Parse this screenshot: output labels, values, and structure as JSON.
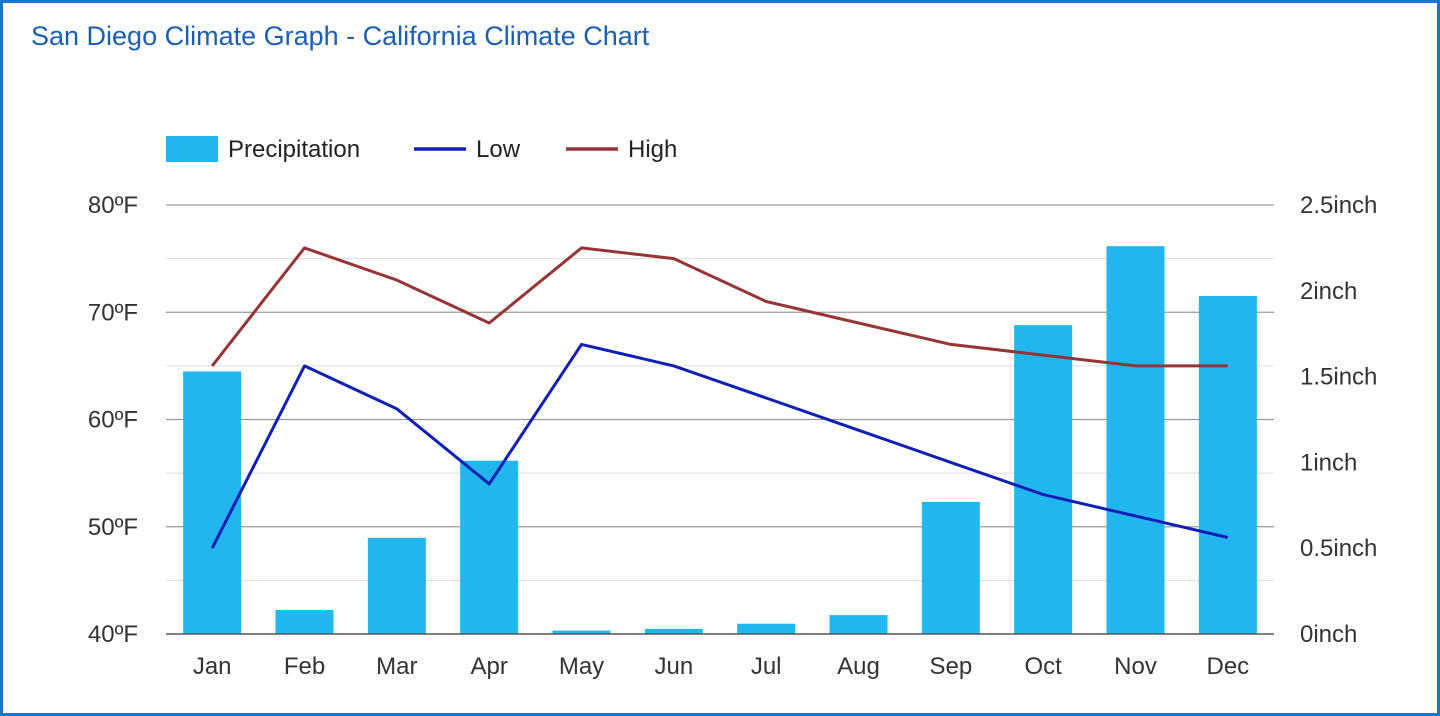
{
  "page": {
    "title": "San Diego Climate Graph - California Climate Chart"
  },
  "colors": {
    "precipitation": "#22b6ef",
    "low": "#1020b4",
    "high": "#963535",
    "grid_major": "#9a9a9a",
    "grid_minor": "#dcdcdc",
    "frame": "#1a74cc",
    "title": "#1a5fb4"
  },
  "chart_data": {
    "type": "bar+line",
    "title": "San Diego Climate Graph - California Climate Chart",
    "categories": [
      "Jan",
      "Feb",
      "Mar",
      "Apr",
      "May",
      "Jun",
      "Jul",
      "Aug",
      "Sep",
      "Oct",
      "Nov",
      "Dec"
    ],
    "series": [
      {
        "name": "Precipitation",
        "kind": "bar",
        "axis": "right",
        "unit": "inch",
        "values": [
          1.53,
          0.14,
          0.56,
          1.01,
          0.02,
          0.03,
          0.06,
          0.11,
          0.77,
          1.8,
          2.26,
          1.97
        ]
      },
      {
        "name": "Low",
        "kind": "line",
        "axis": "left",
        "unit": "ºF",
        "values": [
          48,
          65,
          61,
          54,
          67,
          65,
          62,
          59,
          56,
          53,
          51,
          49
        ]
      },
      {
        "name": "High",
        "kind": "line",
        "axis": "left",
        "unit": "ºF",
        "values": [
          65,
          76,
          73,
          69,
          76,
          75,
          71,
          69,
          67,
          66,
          65,
          65
        ]
      }
    ],
    "left_axis": {
      "min": 40,
      "max": 80,
      "ticks": [
        "40ºF",
        "50ºF",
        "60ºF",
        "70ºF",
        "80ºF"
      ],
      "tick_values": [
        40,
        50,
        60,
        70,
        80
      ]
    },
    "right_axis": {
      "min": 0,
      "max": 2.5,
      "ticks": [
        "0inch",
        "0.5inch",
        "1inch",
        "1.5inch",
        "2inch",
        "2.5inch"
      ],
      "tick_values": [
        0,
        0.5,
        1,
        1.5,
        2,
        2.5
      ]
    },
    "legend": {
      "position": "top-left",
      "items": [
        "Precipitation",
        "Low",
        "High"
      ]
    },
    "grid": true
  }
}
